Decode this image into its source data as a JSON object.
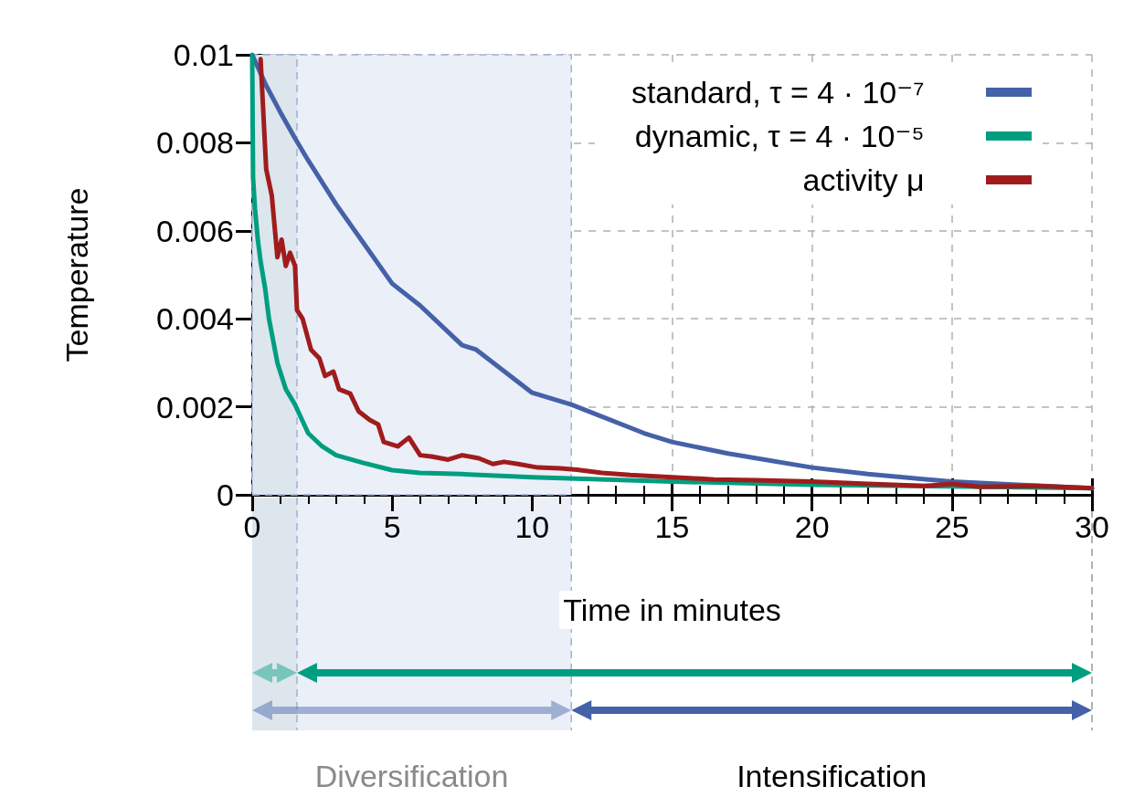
{
  "chart_data": {
    "type": "line",
    "xlabel": "Time in minutes",
    "ylabel": "Temperature",
    "xlim": [
      0,
      30
    ],
    "xticks": [
      0,
      5,
      10,
      15,
      20,
      25,
      30
    ],
    "ylim": [
      0,
      0.01
    ],
    "yticks": [
      0,
      0.002,
      0.004,
      0.006,
      0.008,
      0.01
    ],
    "grid": true,
    "legend": "top right",
    "marker": "none",
    "line_style": "solid",
    "series": [
      {
        "name": "standard, τ = 4 · 10⁻⁷",
        "color": "#4561a8",
        "x": [
          0,
          0.5,
          1,
          1.53,
          2,
          3,
          4,
          5,
          6,
          7.5,
          8,
          10,
          11.4,
          12,
          14,
          15,
          17,
          20,
          22,
          25,
          27,
          30
        ],
        "values": [
          0.01,
          0.0093,
          0.0087,
          0.0081,
          0.0076,
          0.0066,
          0.0057,
          0.0048,
          0.0043,
          0.0034,
          0.0033,
          0.00232,
          0.00205,
          0.0019,
          0.0014,
          0.0012,
          0.00094,
          0.00062,
          0.00047,
          0.0003,
          0.00024,
          0.00015
        ]
      },
      {
        "name": "dynamic, τ = 4 · 10⁻⁵",
        "color": "#009e80",
        "x": [
          0,
          0.03,
          0.1,
          0.2,
          0.3,
          0.46,
          0.6,
          0.9,
          1.2,
          1.53,
          2,
          2.5,
          3,
          3.95,
          5,
          6,
          7.5,
          10,
          15,
          20,
          25,
          30
        ],
        "values": [
          0.01,
          0.0072,
          0.0065,
          0.0058,
          0.0053,
          0.0047,
          0.004,
          0.003,
          0.0024,
          0.00205,
          0.0014,
          0.0011,
          0.0009,
          0.00073,
          0.00056,
          0.0005,
          0.00047,
          0.0004,
          0.0003,
          0.00023,
          0.00019,
          0.00015
        ]
      },
      {
        "name": "activity μ",
        "color": "#a01c1c",
        "x": [
          0.3,
          0.5,
          0.7,
          0.9,
          1.05,
          1.2,
          1.35,
          1.53,
          1.6,
          1.8,
          2.1,
          2.4,
          2.6,
          2.9,
          3.1,
          3.5,
          3.8,
          4.2,
          4.5,
          4.7,
          5.2,
          5.6,
          6.0,
          6.4,
          7.0,
          7.5,
          8.1,
          8.6,
          9.0,
          9.5,
          10.2,
          11.0,
          11.6,
          12.5,
          13.5,
          15,
          16.5,
          18,
          20,
          22,
          24,
          25,
          26,
          28,
          30
        ],
        "values": [
          0.0099,
          0.0074,
          0.0068,
          0.0054,
          0.0058,
          0.0052,
          0.0055,
          0.0052,
          0.0042,
          0.004,
          0.0033,
          0.0031,
          0.0027,
          0.0028,
          0.0024,
          0.0023,
          0.0019,
          0.0017,
          0.0016,
          0.0012,
          0.0011,
          0.0013,
          0.0009,
          0.00087,
          0.0008,
          0.0009,
          0.00083,
          0.0007,
          0.00075,
          0.0007,
          0.00062,
          0.0006,
          0.00057,
          0.0005,
          0.00045,
          0.0004,
          0.00035,
          0.00033,
          0.0003,
          0.00025,
          0.0002,
          0.00025,
          0.00018,
          0.0002,
          0.00015
        ]
      }
    ],
    "bands": [
      {
        "axis": "x",
        "from": 0,
        "to": 11.4,
        "color": "#ebeff8"
      },
      {
        "axis": "x",
        "from": 0,
        "to": 1.6,
        "color": "#dce6ec"
      }
    ],
    "annotations": [
      "Diversification",
      "Intensification"
    ]
  }
}
